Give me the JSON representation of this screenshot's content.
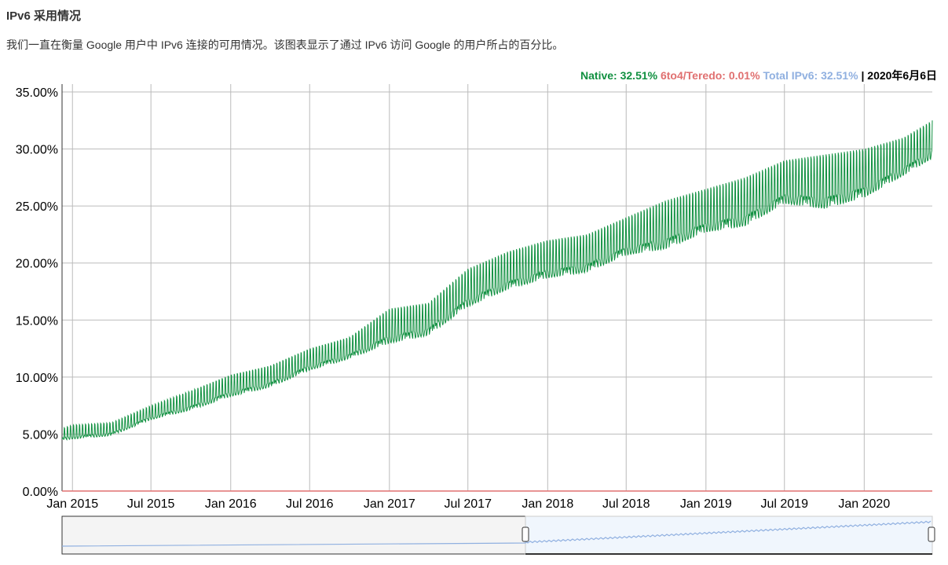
{
  "header": {
    "title": "IPv6 采用情况",
    "description": "我们一直在衡量 Google 用户中 IPv6 连接的可用情况。该图表显示了通过 IPv6 访问 Google 的用户所占的百分比。"
  },
  "legend": {
    "native": "Native: 32.51%",
    "teredo": "6to4/Teredo: 0.01%",
    "total": "Total IPv6: 32.51%",
    "sep": " | ",
    "date": "2020年6月6日"
  },
  "colors": {
    "native": "#109040",
    "teredo": "#e07070",
    "total": "#90b0e0",
    "grid": "#bbbbbb"
  },
  "chart_data": {
    "type": "line",
    "title": "",
    "xlim": [
      "2014-12-08",
      "2020-06-06"
    ],
    "ylim": [
      0,
      35
    ],
    "grid": true,
    "legend_placement": "top-right",
    "y_ticks": [
      "0.00%",
      "5.00%",
      "10.00%",
      "15.00%",
      "20.00%",
      "25.00%",
      "30.00%",
      "35.00%"
    ],
    "x_ticks": [
      [
        "2015-01-01",
        "Jan 2015"
      ],
      [
        "2015-07-01",
        "Jul 2015"
      ],
      [
        "2016-01-01",
        "Jan 2016"
      ],
      [
        "2016-07-01",
        "Jul 2016"
      ],
      [
        "2017-01-01",
        "Jan 2017"
      ],
      [
        "2017-07-01",
        "Jul 2017"
      ],
      [
        "2018-01-01",
        "Jan 2018"
      ],
      [
        "2018-07-01",
        "Jul 2018"
      ],
      [
        "2019-01-01",
        "Jan 2019"
      ],
      [
        "2019-07-01",
        "Jul 2019"
      ],
      [
        "2020-01-01",
        "Jan 2020"
      ]
    ],
    "series": [
      {
        "name": "Native",
        "points": [
          [
            "2014-12-08",
            4.4,
            5.5
          ],
          [
            "2015-01-01",
            4.5,
            5.8
          ],
          [
            "2015-04-01",
            4.8,
            6.0
          ],
          [
            "2015-07-01",
            6.2,
            7.5
          ],
          [
            "2015-10-01",
            7.0,
            8.8
          ],
          [
            "2016-01-01",
            8.2,
            10.2
          ],
          [
            "2016-04-01",
            9.0,
            11.0
          ],
          [
            "2016-07-01",
            10.5,
            12.5
          ],
          [
            "2016-10-01",
            11.5,
            13.5
          ],
          [
            "2017-01-01",
            12.8,
            16.0
          ],
          [
            "2017-04-01",
            13.5,
            16.5
          ],
          [
            "2017-07-01",
            16.0,
            19.5
          ],
          [
            "2017-10-01",
            17.5,
            21.0
          ],
          [
            "2018-01-01",
            18.5,
            22.0
          ],
          [
            "2018-04-01",
            19.0,
            22.5
          ],
          [
            "2018-07-01",
            20.5,
            24.0
          ],
          [
            "2018-10-01",
            21.0,
            25.5
          ],
          [
            "2019-01-01",
            22.5,
            26.5
          ],
          [
            "2019-04-01",
            23.0,
            27.5
          ],
          [
            "2019-07-01",
            25.0,
            29.0
          ],
          [
            "2019-10-01",
            24.5,
            29.5
          ],
          [
            "2020-01-01",
            25.5,
            30.0
          ],
          [
            "2020-04-01",
            27.5,
            31.0
          ],
          [
            "2020-06-06",
            29.0,
            32.5
          ]
        ]
      },
      {
        "name": "6to4/Teredo",
        "value": 0.01
      }
    ]
  }
}
